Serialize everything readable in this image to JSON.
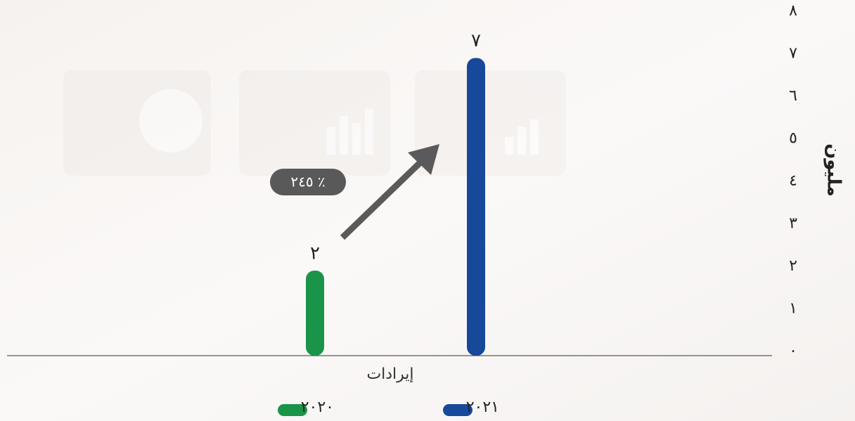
{
  "chart_data": {
    "type": "bar",
    "categories": [
      "إيرادات"
    ],
    "series": [
      {
        "name": "٢٠٢٠",
        "color": "#1a9448",
        "values": [
          2
        ],
        "value_labels": [
          "٢"
        ]
      },
      {
        "name": "٢٠٢١",
        "color": "#17489a",
        "values": [
          7
        ],
        "value_labels": [
          "٧"
        ]
      }
    ],
    "ylabel": "مليون",
    "annotation": "٢٤٥ ٪",
    "ylim": [
      0,
      8
    ],
    "yticks": [
      {
        "value": 0,
        "label": "٠"
      },
      {
        "value": 1,
        "label": "١"
      },
      {
        "value": 2,
        "label": "٢"
      },
      {
        "value": 3,
        "label": "٣"
      },
      {
        "value": 4,
        "label": "٤"
      },
      {
        "value": 5,
        "label": "٥"
      },
      {
        "value": 6,
        "label": "٦"
      },
      {
        "value": 7,
        "label": "٧"
      },
      {
        "value": 8,
        "label": "٨"
      }
    ]
  }
}
